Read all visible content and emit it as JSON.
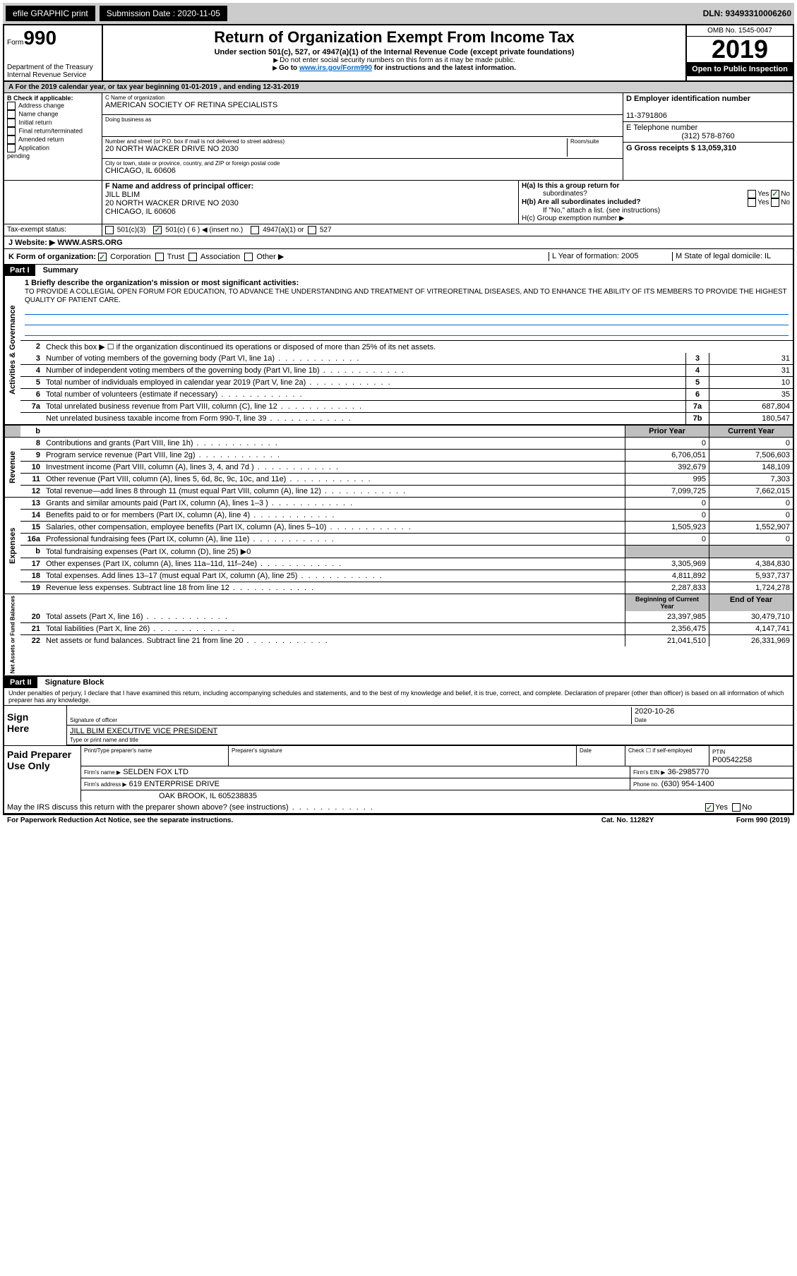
{
  "toolbar": {
    "efile": "efile GRAPHIC print",
    "submission_label": "Submission Date : 2020-11-05",
    "dln": "DLN: 93493310006260"
  },
  "header": {
    "form_prefix": "Form",
    "form_number": "990",
    "dept": "Department of the Treasury",
    "irs": "Internal Revenue Service",
    "title": "Return of Organization Exempt From Income Tax",
    "subtitle": "Under section 501(c), 527, or 4947(a)(1) of the Internal Revenue Code (except private foundations)",
    "line1": "Do not enter social security numbers on this form as it may be made public.",
    "line2_pre": "Go to ",
    "line2_link": "www.irs.gov/Form990",
    "line2_post": " for instructions and the latest information.",
    "omb": "OMB No. 1545-0047",
    "year": "2019",
    "open": "Open to Public Inspection"
  },
  "period": "For the 2019 calendar year, or tax year beginning 01-01-2019    , and ending 12-31-2019",
  "section_b": {
    "label": "B Check if applicable:",
    "items": [
      "Address change",
      "Name change",
      "Initial return",
      "Final return/terminated",
      "Amended return",
      "Application"
    ],
    "pending": "pending"
  },
  "section_c": {
    "name_label": "C Name of organization",
    "name": "AMERICAN SOCIETY OF RETINA SPECIALISTS",
    "dba_label": "Doing business as",
    "addr_label": "Number and street (or P.O. box if mail is not delivered to street address)",
    "room_label": "Room/suite",
    "addr": "20 NORTH WACKER DRIVE NO 2030",
    "city_label": "City or town, state or province, country, and ZIP or foreign postal code",
    "city": "CHICAGO, IL  60606"
  },
  "section_d": {
    "ein_label": "D Employer identification number",
    "ein": "11-3791806",
    "phone_label": "E Telephone number",
    "phone": "(312) 578-8760",
    "gross_label": "G Gross receipts $ 13,059,310"
  },
  "section_f": {
    "label": "F  Name and address of principal officer:",
    "name": "JILL BLIM",
    "addr1": "20 NORTH WACKER DRIVE NO 2030",
    "addr2": "CHICAGO, IL  60606"
  },
  "section_h": {
    "ha": "H(a)  Is this a group return for",
    "sub": "subordinates?",
    "hb": "H(b)  Are all subordinates included?",
    "note": "If \"No,\" attach a list. (see instructions)",
    "hc": "H(c)  Group exemption number ▶",
    "yes": "Yes",
    "no": "No"
  },
  "tax_exempt": {
    "label": "Tax-exempt status:",
    "opt1": "501(c)(3)",
    "opt2": "501(c) ( 6 ) ◀ (insert no.)",
    "opt3": "4947(a)(1) or",
    "opt4": "527"
  },
  "website": {
    "label": "J  Website: ▶",
    "value": "WWW.ASRS.ORG"
  },
  "section_k": {
    "label": "K Form of organization:",
    "corp": "Corporation",
    "trust": "Trust",
    "assoc": "Association",
    "other": "Other ▶",
    "l_label": "L Year of formation: 2005",
    "m_label": "M State of legal domicile: IL"
  },
  "part1": {
    "header": "Part I",
    "title": "Summary",
    "side_gov": "Activities & Governance",
    "side_rev": "Revenue",
    "side_exp": "Expenses",
    "side_net": "Net Assets or Fund Balances",
    "line1_label": "1  Briefly describe the organization's mission or most significant activities:",
    "mission": "TO PROVIDE A COLLEGIAL OPEN FORUM FOR EDUCATION, TO ADVANCE THE UNDERSTANDING AND TREATMENT OF VITREORETINAL DISEASES, AND TO ENHANCE THE ABILITY OF ITS MEMBERS TO PROVIDE THE HIGHEST QUALITY OF PATIENT CARE.",
    "line2": "Check this box ▶ ☐ if the organization discontinued its operations or disposed of more than 25% of its net assets.",
    "prior_year": "Prior Year",
    "current_year": "Current Year",
    "beg_year": "Beginning of Current Year",
    "end_year": "End of Year",
    "rows_gov": [
      {
        "n": "3",
        "t": "Number of voting members of the governing body (Part VI, line 1a)",
        "b": "3",
        "v": "31"
      },
      {
        "n": "4",
        "t": "Number of independent voting members of the governing body (Part VI, line 1b)",
        "b": "4",
        "v": "31"
      },
      {
        "n": "5",
        "t": "Total number of individuals employed in calendar year 2019 (Part V, line 2a)",
        "b": "5",
        "v": "10"
      },
      {
        "n": "6",
        "t": "Total number of volunteers (estimate if necessary)",
        "b": "6",
        "v": "35"
      },
      {
        "n": "7a",
        "t": "Total unrelated business revenue from Part VIII, column (C), line 12",
        "b": "7a",
        "v": "687,804"
      },
      {
        "n": "",
        "t": "Net unrelated business taxable income from Form 990-T, line 39",
        "b": "7b",
        "v": "180,547"
      }
    ],
    "rows_rev": [
      {
        "n": "8",
        "t": "Contributions and grants (Part VIII, line 1h)",
        "p": "0",
        "c": "0"
      },
      {
        "n": "9",
        "t": "Program service revenue (Part VIII, line 2g)",
        "p": "6,706,051",
        "c": "7,506,603"
      },
      {
        "n": "10",
        "t": "Investment income (Part VIII, column (A), lines 3, 4, and 7d )",
        "p": "392,679",
        "c": "148,109"
      },
      {
        "n": "11",
        "t": "Other revenue (Part VIII, column (A), lines 5, 6d, 8c, 9c, 10c, and 11e)",
        "p": "995",
        "c": "7,303"
      },
      {
        "n": "12",
        "t": "Total revenue—add lines 8 through 11 (must equal Part VIII, column (A), line 12)",
        "p": "7,099,725",
        "c": "7,662,015"
      }
    ],
    "rows_exp": [
      {
        "n": "13",
        "t": "Grants and similar amounts paid (Part IX, column (A), lines 1–3 )",
        "p": "0",
        "c": "0"
      },
      {
        "n": "14",
        "t": "Benefits paid to or for members (Part IX, column (A), line 4)",
        "p": "0",
        "c": "0"
      },
      {
        "n": "15",
        "t": "Salaries, other compensation, employee benefits (Part IX, column (A), lines 5–10)",
        "p": "1,505,923",
        "c": "1,552,907"
      },
      {
        "n": "16a",
        "t": "Professional fundraising fees (Part IX, column (A), line 11e)",
        "p": "0",
        "c": "0"
      },
      {
        "n": "b",
        "t": "Total fundraising expenses (Part IX, column (D), line 25) ▶0",
        "p": "",
        "c": "",
        "shaded": true
      },
      {
        "n": "17",
        "t": "Other expenses (Part IX, column (A), lines 11a–11d, 11f–24e)",
        "p": "3,305,969",
        "c": "4,384,830"
      },
      {
        "n": "18",
        "t": "Total expenses. Add lines 13–17 (must equal Part IX, column (A), line 25)",
        "p": "4,811,892",
        "c": "5,937,737"
      },
      {
        "n": "19",
        "t": "Revenue less expenses. Subtract line 18 from line 12",
        "p": "2,287,833",
        "c": "1,724,278"
      }
    ],
    "rows_net": [
      {
        "n": "20",
        "t": "Total assets (Part X, line 16)",
        "p": "23,397,985",
        "c": "30,479,710"
      },
      {
        "n": "21",
        "t": "Total liabilities (Part X, line 26)",
        "p": "2,356,475",
        "c": "4,147,741"
      },
      {
        "n": "22",
        "t": "Net assets or fund balances. Subtract line 21 from line 20",
        "p": "21,041,510",
        "c": "26,331,969"
      }
    ]
  },
  "part2": {
    "header": "Part II",
    "title": "Signature Block",
    "penalty": "Under penalties of perjury, I declare that I have examined this return, including accompanying schedules and statements, and to the best of my knowledge and belief, it is true, correct, and complete. Declaration of preparer (other than officer) is based on all information of which preparer has any knowledge.",
    "sign_here": "Sign Here",
    "sig_officer": "Signature of officer",
    "date_label": "Date",
    "date": "2020-10-26",
    "name_title": "JILL BLIM  EXECUTIVE VICE PRESIDENT",
    "type_label": "Type or print name and title",
    "paid": "Paid Preparer Use Only",
    "print_name": "Print/Type preparer's name",
    "prep_sig": "Preparer's signature",
    "check_self": "Check ☐ if self-employed",
    "ptin_label": "PTIN",
    "ptin": "P00542258",
    "firm_name_label": "Firm's name    ▶",
    "firm_name": "SELDEN FOX LTD",
    "firm_ein_label": "Firm's EIN ▶",
    "firm_ein": "36-2985770",
    "firm_addr_label": "Firm's address ▶",
    "firm_addr1": "619 ENTERPRISE DRIVE",
    "firm_addr2": "OAK BROOK, IL  605238835",
    "firm_phone_label": "Phone no.",
    "firm_phone": "(630) 954-1400",
    "discuss": "May the IRS discuss this return with the preparer shown above? (see instructions)"
  },
  "footer": {
    "paperwork": "For Paperwork Reduction Act Notice, see the separate instructions.",
    "cat": "Cat. No. 11282Y",
    "form": "Form 990 (2019)"
  }
}
